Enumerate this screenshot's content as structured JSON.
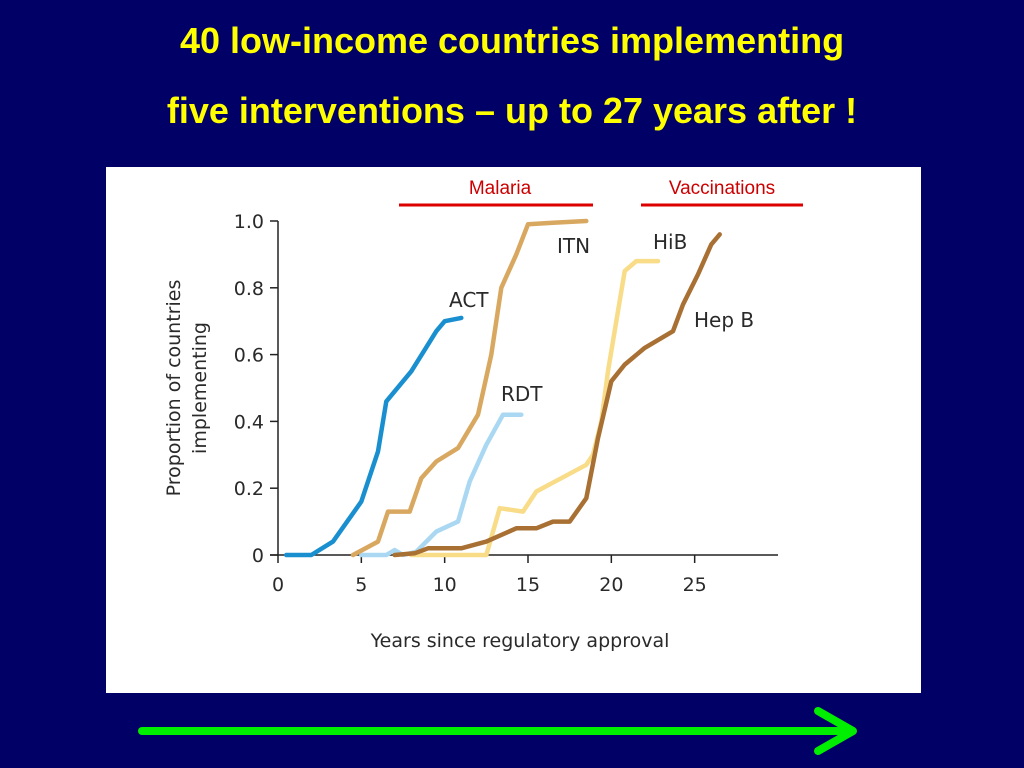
{
  "slide": {
    "title_line1": "40 low-income countries implementing",
    "title_line2": "five interventions – up to 27 years after !",
    "title_color": "#ffff00",
    "background_color": "#000066",
    "arrow_color": "#00ee00"
  },
  "groups": [
    {
      "label": "Malaria",
      "color": "#dd0000"
    },
    {
      "label": "Vaccinations",
      "color": "#dd0000"
    }
  ],
  "chart_data": {
    "type": "line",
    "title": "",
    "xlabel": "Years since regulatory approval",
    "ylabel": "Proportion of countries implementing",
    "xlim": [
      0,
      30
    ],
    "ylim": [
      0,
      1.0
    ],
    "x_ticks": [
      0,
      5,
      10,
      15,
      20,
      25
    ],
    "y_ticks": [
      0,
      0.2,
      0.4,
      0.6,
      0.8,
      1.0
    ],
    "y_tick_labels": [
      "0",
      "0.2",
      "0.4",
      "0.6",
      "0.8",
      "1.0"
    ],
    "grid": false,
    "series": [
      {
        "name": "ACT",
        "color": "#1a8fd0",
        "points": [
          [
            0.5,
            0
          ],
          [
            2,
            0
          ],
          [
            3.3,
            0.04
          ],
          [
            5,
            0.16
          ],
          [
            6,
            0.31
          ],
          [
            6.5,
            0.46
          ],
          [
            8,
            0.55
          ],
          [
            9,
            0.63
          ],
          [
            9.5,
            0.67
          ],
          [
            10,
            0.7
          ],
          [
            11,
            0.71
          ]
        ]
      },
      {
        "name": "ITN",
        "color": "#d9a860",
        "points": [
          [
            4.5,
            0
          ],
          [
            6,
            0.04
          ],
          [
            6.6,
            0.13
          ],
          [
            7.9,
            0.13
          ],
          [
            8.6,
            0.23
          ],
          [
            9.5,
            0.28
          ],
          [
            10.8,
            0.32
          ],
          [
            12,
            0.42
          ],
          [
            12.8,
            0.6
          ],
          [
            13.4,
            0.8
          ],
          [
            14.3,
            0.9
          ],
          [
            15,
            0.99
          ],
          [
            16.5,
            0.995
          ],
          [
            18.5,
            1.0
          ]
        ]
      },
      {
        "name": "RDT",
        "color": "#aad8f2",
        "points": [
          [
            5,
            0
          ],
          [
            6.5,
            0
          ],
          [
            7,
            0.015
          ],
          [
            7.5,
            0
          ],
          [
            8.3,
            0.01
          ],
          [
            9.5,
            0.07
          ],
          [
            10.8,
            0.1
          ],
          [
            11.5,
            0.22
          ],
          [
            12.5,
            0.33
          ],
          [
            13.5,
            0.42
          ],
          [
            14.6,
            0.42
          ]
        ]
      },
      {
        "name": "HiB",
        "color": "#f8dc88",
        "points": [
          [
            8,
            0
          ],
          [
            12.5,
            0
          ],
          [
            13.3,
            0.14
          ],
          [
            14.7,
            0.13
          ],
          [
            15.5,
            0.19
          ],
          [
            17,
            0.23
          ],
          [
            18.5,
            0.27
          ],
          [
            18.9,
            0.3
          ],
          [
            19.4,
            0.4
          ],
          [
            19.8,
            0.55
          ],
          [
            20.3,
            0.7
          ],
          [
            20.8,
            0.85
          ],
          [
            21.5,
            0.88
          ],
          [
            22.8,
            0.88
          ]
        ]
      },
      {
        "name": "Hep B",
        "color": "#a97034",
        "points": [
          [
            7,
            0
          ],
          [
            8.2,
            0.005
          ],
          [
            9,
            0.02
          ],
          [
            11,
            0.02
          ],
          [
            12.5,
            0.04
          ],
          [
            14.3,
            0.08
          ],
          [
            15.5,
            0.08
          ],
          [
            16.5,
            0.1
          ],
          [
            17.5,
            0.1
          ],
          [
            18.5,
            0.17
          ],
          [
            19.2,
            0.35
          ],
          [
            20,
            0.52
          ],
          [
            20.8,
            0.57
          ],
          [
            22,
            0.62
          ],
          [
            23.7,
            0.67
          ],
          [
            24.3,
            0.75
          ],
          [
            25.2,
            0.84
          ],
          [
            26,
            0.93
          ],
          [
            26.5,
            0.96
          ]
        ]
      }
    ]
  }
}
